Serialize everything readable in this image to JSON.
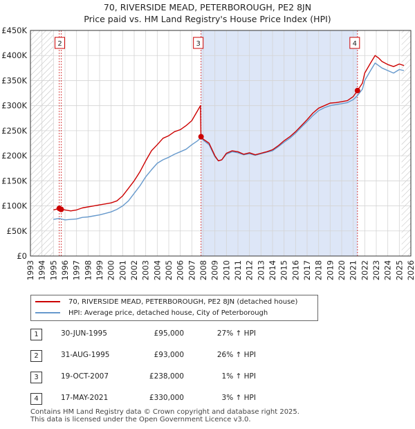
{
  "title": {
    "line1": "70, RIVERSIDE MEAD, PETERBOROUGH, PE2 8JN",
    "line2": "Price paid vs. HM Land Registry's House Price Index (HPI)"
  },
  "colors": {
    "property": "#cc0000",
    "hpi": "#6699cc",
    "shade": "#dde6f7",
    "grid": "#d4d4d4"
  },
  "chart_data": {
    "type": "line",
    "xlim": [
      1993,
      2026
    ],
    "ylim": [
      0,
      450000
    ],
    "x_ticks": [
      1993,
      1994,
      1995,
      1996,
      1997,
      1998,
      1999,
      2000,
      2001,
      2002,
      2003,
      2004,
      2005,
      2006,
      2007,
      2008,
      2009,
      2010,
      2011,
      2012,
      2013,
      2014,
      2015,
      2016,
      2017,
      2018,
      2019,
      2020,
      2021,
      2022,
      2023,
      2024,
      2025,
      2026
    ],
    "y_ticks": [
      0,
      50000,
      100000,
      150000,
      200000,
      250000,
      300000,
      350000,
      400000,
      450000
    ],
    "y_tick_labels": [
      "£0",
      "£50K",
      "£100K",
      "£150K",
      "£200K",
      "£250K",
      "£300K",
      "£350K",
      "£400K",
      "£450K"
    ],
    "hatch_before": 1995.0,
    "hatch_after": 2025.2,
    "shaded_between": [
      2007.8,
      2021.37
    ],
    "series": [
      {
        "name": "70, RIVERSIDE MEAD, PETERBOROUGH, PE2 8JN (detached house)",
        "color": "#cc0000",
        "points": [
          [
            1995.0,
            92000
          ],
          [
            1995.5,
            95000
          ],
          [
            1995.67,
            93000
          ],
          [
            1996.0,
            92000
          ],
          [
            1996.5,
            90000
          ],
          [
            1997.0,
            92000
          ],
          [
            1997.5,
            96000
          ],
          [
            1998.0,
            98000
          ],
          [
            1998.5,
            100000
          ],
          [
            1999.0,
            102000
          ],
          [
            1999.5,
            104000
          ],
          [
            2000.0,
            106000
          ],
          [
            2000.5,
            110000
          ],
          [
            2001.0,
            120000
          ],
          [
            2001.5,
            135000
          ],
          [
            2002.0,
            150000
          ],
          [
            2002.5,
            168000
          ],
          [
            2003.0,
            190000
          ],
          [
            2003.5,
            210000
          ],
          [
            2004.0,
            222000
          ],
          [
            2004.5,
            235000
          ],
          [
            2005.0,
            240000
          ],
          [
            2005.5,
            248000
          ],
          [
            2006.0,
            252000
          ],
          [
            2006.5,
            260000
          ],
          [
            2007.0,
            270000
          ],
          [
            2007.5,
            290000
          ],
          [
            2007.75,
            300000
          ],
          [
            2007.79,
            238000
          ],
          [
            2008.0,
            233000
          ],
          [
            2008.5,
            225000
          ],
          [
            2009.0,
            200000
          ],
          [
            2009.3,
            190000
          ],
          [
            2009.6,
            192000
          ],
          [
            2010.0,
            205000
          ],
          [
            2010.5,
            210000
          ],
          [
            2011.0,
            208000
          ],
          [
            2011.5,
            203000
          ],
          [
            2012.0,
            206000
          ],
          [
            2012.5,
            202000
          ],
          [
            2013.0,
            205000
          ],
          [
            2013.5,
            208000
          ],
          [
            2014.0,
            212000
          ],
          [
            2014.5,
            220000
          ],
          [
            2015.0,
            230000
          ],
          [
            2015.5,
            238000
          ],
          [
            2016.0,
            248000
          ],
          [
            2016.5,
            260000
          ],
          [
            2017.0,
            272000
          ],
          [
            2017.5,
            285000
          ],
          [
            2018.0,
            295000
          ],
          [
            2018.5,
            300000
          ],
          [
            2019.0,
            305000
          ],
          [
            2019.5,
            306000
          ],
          [
            2020.0,
            308000
          ],
          [
            2020.5,
            310000
          ],
          [
            2021.0,
            318000
          ],
          [
            2021.37,
            330000
          ],
          [
            2021.8,
            345000
          ],
          [
            2022.0,
            365000
          ],
          [
            2022.5,
            385000
          ],
          [
            2022.9,
            400000
          ],
          [
            2023.2,
            395000
          ],
          [
            2023.5,
            388000
          ],
          [
            2024.0,
            382000
          ],
          [
            2024.5,
            378000
          ],
          [
            2025.0,
            383000
          ],
          [
            2025.4,
            380000
          ]
        ]
      },
      {
        "name": "HPI: Average price, detached house, City of Peterborough",
        "color": "#6699cc",
        "points": [
          [
            1995.0,
            73000
          ],
          [
            1995.5,
            75000
          ],
          [
            1996.0,
            72000
          ],
          [
            1996.5,
            73000
          ],
          [
            1997.0,
            74000
          ],
          [
            1997.5,
            77000
          ],
          [
            1998.0,
            78000
          ],
          [
            1998.5,
            80000
          ],
          [
            1999.0,
            82000
          ],
          [
            1999.5,
            85000
          ],
          [
            2000.0,
            88000
          ],
          [
            2000.5,
            93000
          ],
          [
            2001.0,
            100000
          ],
          [
            2001.5,
            110000
          ],
          [
            2002.0,
            125000
          ],
          [
            2002.5,
            140000
          ],
          [
            2003.0,
            158000
          ],
          [
            2003.5,
            172000
          ],
          [
            2004.0,
            185000
          ],
          [
            2004.5,
            192000
          ],
          [
            2005.0,
            197000
          ],
          [
            2005.5,
            203000
          ],
          [
            2006.0,
            208000
          ],
          [
            2006.5,
            213000
          ],
          [
            2007.0,
            222000
          ],
          [
            2007.5,
            230000
          ],
          [
            2007.8,
            236000
          ],
          [
            2008.0,
            231000
          ],
          [
            2008.5,
            222000
          ],
          [
            2009.0,
            198000
          ],
          [
            2009.3,
            190000
          ],
          [
            2009.6,
            192000
          ],
          [
            2010.0,
            203000
          ],
          [
            2010.5,
            208000
          ],
          [
            2011.0,
            206000
          ],
          [
            2011.5,
            202000
          ],
          [
            2012.0,
            204000
          ],
          [
            2012.5,
            201000
          ],
          [
            2013.0,
            204000
          ],
          [
            2013.5,
            207000
          ],
          [
            2014.0,
            210000
          ],
          [
            2014.5,
            218000
          ],
          [
            2015.0,
            227000
          ],
          [
            2015.5,
            235000
          ],
          [
            2016.0,
            245000
          ],
          [
            2016.5,
            257000
          ],
          [
            2017.0,
            268000
          ],
          [
            2017.5,
            280000
          ],
          [
            2018.0,
            290000
          ],
          [
            2018.5,
            296000
          ],
          [
            2019.0,
            300000
          ],
          [
            2019.5,
            302000
          ],
          [
            2020.0,
            304000
          ],
          [
            2020.5,
            306000
          ],
          [
            2021.0,
            312000
          ],
          [
            2021.37,
            320000
          ],
          [
            2021.8,
            333000
          ],
          [
            2022.0,
            350000
          ],
          [
            2022.5,
            370000
          ],
          [
            2022.9,
            385000
          ],
          [
            2023.2,
            380000
          ],
          [
            2023.5,
            375000
          ],
          [
            2024.0,
            370000
          ],
          [
            2024.5,
            365000
          ],
          [
            2025.0,
            372000
          ],
          [
            2025.4,
            370000
          ]
        ]
      }
    ],
    "markers": [
      {
        "label": "1",
        "x": 1995.5,
        "y": 95000
      },
      {
        "label": "2",
        "x": 1995.67,
        "y": 93000
      },
      {
        "label": "3",
        "x": 2007.8,
        "y": 238000
      },
      {
        "label": "4",
        "x": 2021.37,
        "y": 330000
      }
    ],
    "marker_boxes": [
      {
        "label": "2",
        "x": 1995.67
      },
      {
        "label": "3",
        "x": 2007.8
      },
      {
        "label": "4",
        "x": 2021.37
      }
    ]
  },
  "legend": {
    "property_label": "70, RIVERSIDE MEAD, PETERBOROUGH, PE2 8JN (detached house)",
    "hpi_label": "HPI: Average price, detached house, City of Peterborough"
  },
  "sales": [
    {
      "num": "1",
      "date": "30-JUN-1995",
      "price": "£95,000",
      "hpi": "27% ↑ HPI"
    },
    {
      "num": "2",
      "date": "31-AUG-1995",
      "price": "£93,000",
      "hpi": "26% ↑ HPI"
    },
    {
      "num": "3",
      "date": "19-OCT-2007",
      "price": "£238,000",
      "hpi": "1% ↑ HPI"
    },
    {
      "num": "4",
      "date": "17-MAY-2021",
      "price": "£330,000",
      "hpi": "3% ↑ HPI"
    }
  ],
  "footer": {
    "line1": "Contains HM Land Registry data © Crown copyright and database right 2025.",
    "line2": "This data is licensed under the Open Government Licence v3.0."
  }
}
